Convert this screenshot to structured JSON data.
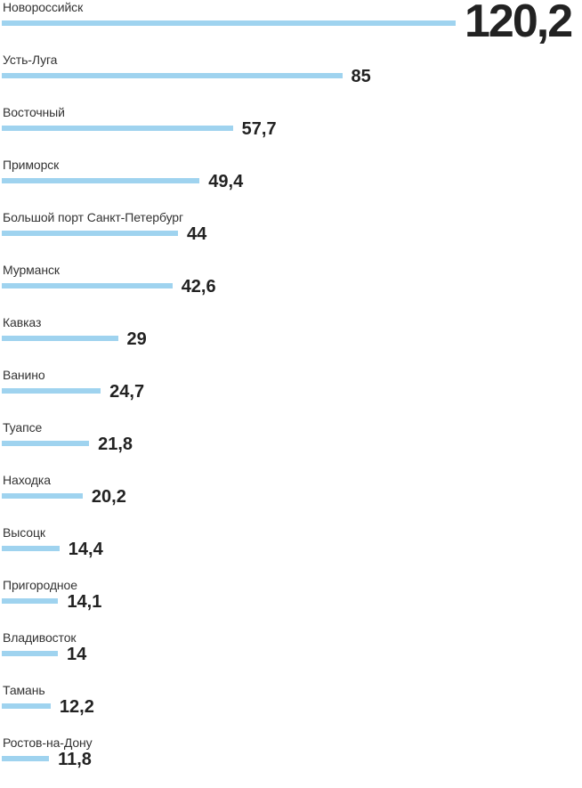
{
  "chart_data": {
    "type": "bar",
    "orientation": "horizontal",
    "categories": [
      "Новороссийск",
      "Усть-Луга",
      "Восточный",
      "Приморск",
      "Большой порт Санкт-Петербург",
      "Мурманск",
      "Кавказ",
      "Ванино",
      "Туапсе",
      "Находка",
      "Высоцк",
      "Пригородное",
      "Владивосток",
      "Тамань",
      "Ростов-на-Дону"
    ],
    "values": [
      120.2,
      85,
      57.7,
      49.4,
      44,
      42.6,
      29,
      24.7,
      21.8,
      20.2,
      14.4,
      14.1,
      14,
      12.2,
      11.8
    ],
    "value_labels": [
      "120,2",
      "85",
      "57,7",
      "49,4",
      "44",
      "42,6",
      "29",
      "24,7",
      "21,8",
      "20,2",
      "14,4",
      "14,1",
      "14",
      "12,2",
      "11,8"
    ],
    "bar_color": "#9fd3ef",
    "grid": false,
    "legend": "none"
  }
}
